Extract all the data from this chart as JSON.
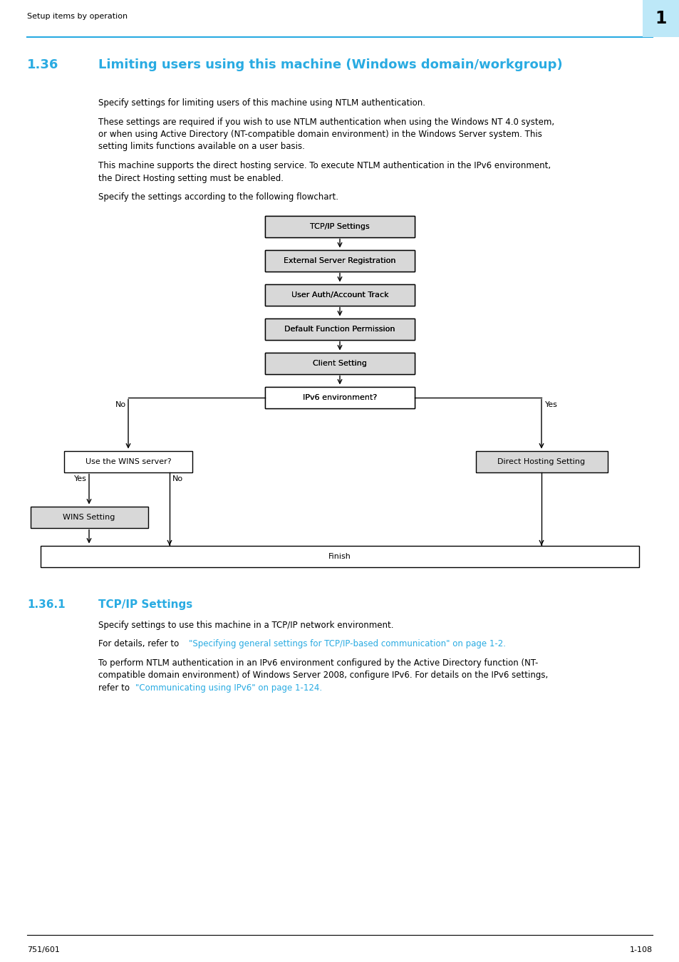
{
  "page_header_text": "Setup items by operation",
  "page_number_box": "1",
  "header_line_color": "#29ABE2",
  "section_number": "1.36",
  "section_title": "Limiting users using this machine (Windows domain/workgroup)",
  "section_color": "#29ABE2",
  "body_text_color": "#000000",
  "paragraphs": [
    "Specify settings for limiting users of this machine using NTLM authentication.",
    "These settings are required if you wish to use NTLM authentication when using the Windows NT 4.0 system,\nor when using Active Directory (NT-compatible domain environment) in the Windows Server system. This\nsetting limits functions available on a user basis.",
    "This machine supports the direct hosting service. To execute NTLM authentication in the IPv6 environment,\nthe Direct Hosting setting must be enabled.",
    "Specify the settings according to the following flowchart."
  ],
  "flowchart_boxes": [
    {
      "label": "TCP/IP Settings",
      "type": "gray"
    },
    {
      "label": "External Server Registration",
      "type": "gray"
    },
    {
      "label": "User Auth/Account Track",
      "type": "gray"
    },
    {
      "label": "Default Function Permission",
      "type": "gray"
    },
    {
      "label": "Client Setting",
      "type": "gray"
    },
    {
      "label": "IPv6 environment?",
      "type": "white"
    }
  ],
  "wins_box_label": "Use the WINS server?",
  "direct_box_label": "Direct Hosting Setting",
  "wins_setting_label": "WINS Setting",
  "finish_label": "Finish",
  "subsection_number": "1.36.1",
  "subsection_title": "TCP/IP Settings",
  "subsection_para1": "Specify settings to use this machine in a TCP/IP network environment.",
  "subsection_para2_pre": "For details, refer to ",
  "subsection_para2_link": "\"Specifying general settings for TCP/IP-based communication\" on page 1-2",
  "subsection_para2_post": ".",
  "subsection_para3_lines": [
    {
      "text": "To perform NTLM authentication in an IPv6 environment configured by the Active Directory function (NT-",
      "color": "black"
    },
    {
      "text": "compatible domain environment) of Windows Server 2008, configure IPv6. For details on the IPv6 settings,",
      "color": "black"
    },
    {
      "text": "refer to ",
      "color": "black",
      "link": "\"Communicating using IPv6\" on page 1-124",
      "post": "."
    }
  ],
  "footer_left": "751/601",
  "footer_right": "1-108",
  "bg_color": "#ffffff",
  "box_fill_gray": "#d8d8d8",
  "box_fill_white": "#ffffff",
  "box_edge_color": "#000000",
  "link_color": "#29ABE2",
  "page_num_bg": "#BDE8F8"
}
